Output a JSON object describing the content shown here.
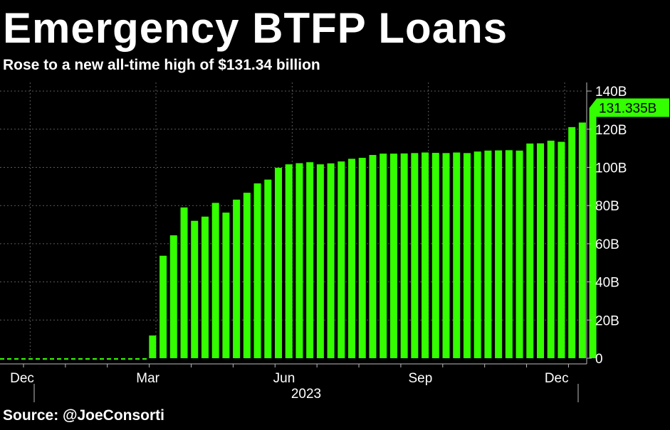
{
  "title": "Emergency BTFP Loans",
  "subtitle": "Rose to a new all-time high of $131.34 billion",
  "source": "Source: @JoeConsorti",
  "chart_data": {
    "type": "bar",
    "bar_color": "#33ff00",
    "background": "#000000",
    "grid": true,
    "y_axis_side": "right",
    "ylim": [
      0,
      140
    ],
    "yticks": [
      0,
      20,
      40,
      60,
      80,
      100,
      120,
      140
    ],
    "ytick_labels": [
      "0",
      "20B",
      "40B",
      "60B",
      "80B",
      "100B",
      "120B",
      "140B"
    ],
    "x_tick_labels": [
      {
        "label": "Dec",
        "week": 0
      },
      {
        "label": "Mar",
        "week": 12
      },
      {
        "label": "Jun",
        "week": 25
      },
      {
        "label": "Sep",
        "week": 38
      },
      {
        "label": "Dec",
        "week": 51
      }
    ],
    "year_label": "2023",
    "last_value_label": "131.335B",
    "first_bar_week": 13,
    "values": [
      11.9,
      53.7,
      64.4,
      79.0,
      72.0,
      74.2,
      81.4,
      76.3,
      83.1,
      86.7,
      91.6,
      93.6,
      99.8,
      101.6,
      102.2,
      102.7,
      101.6,
      102.1,
      103.1,
      104.5,
      105.0,
      106.5,
      107.2,
      107.2,
      107.3,
      107.5,
      107.8,
      107.6,
      107.5,
      107.8,
      107.5,
      108.3,
      108.8,
      108.9,
      109.0,
      108.8,
      112.5,
      112.6,
      114.0,
      113.4,
      121.1,
      123.5,
      131.3
    ]
  }
}
